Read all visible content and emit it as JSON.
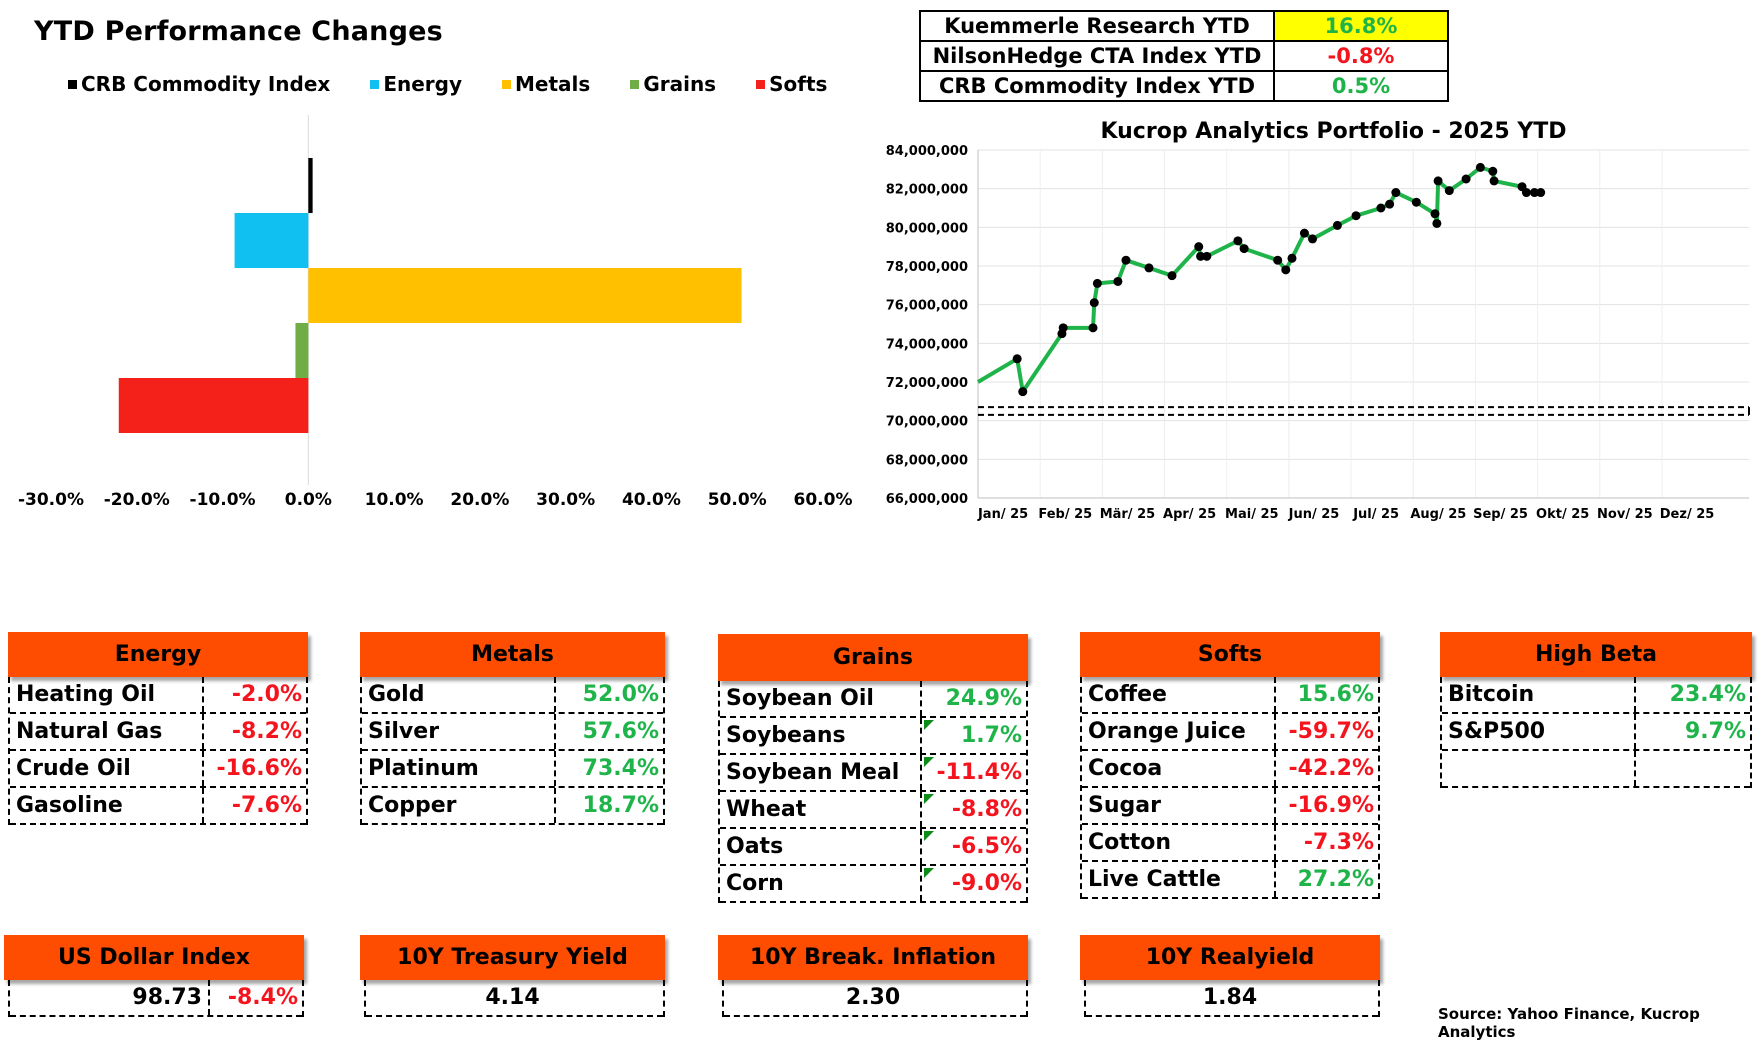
{
  "bar_chart": {
    "title": "YTD Performance Changes",
    "legend": [
      {
        "name": "CRB Commodity Index",
        "color": "#000000"
      },
      {
        "name": "Energy",
        "color": "#0fc0f0"
      },
      {
        "name": "Metals",
        "color": "#ffc000"
      },
      {
        "name": "Grains",
        "color": "#70ad47"
      },
      {
        "name": "Softs",
        "color": "#f4211a"
      }
    ]
  },
  "summary_table": [
    {
      "label": "Kuemmerle Research YTD",
      "value": "16.8%",
      "color": "#1fb44a",
      "bg": "#ffff00"
    },
    {
      "label": "NilsonHedge CTA Index YTD",
      "value": "-0.8%",
      "color": "#f4141e",
      "bg": "#ffffff"
    },
    {
      "label": "CRB Commodity Index YTD",
      "value": "0.5%",
      "color": "#1fb44a",
      "bg": "#ffffff"
    }
  ],
  "chart_data": [
    {
      "type": "bar",
      "orientation": "horizontal",
      "title": "YTD Performance Changes",
      "categories": [
        "CRB Commodity Index",
        "Energy",
        "Metals",
        "Grains",
        "Softs"
      ],
      "values": [
        0.5,
        -8.6,
        50.5,
        -1.5,
        -22.1
      ],
      "colors": [
        "#000000",
        "#0fc0f0",
        "#ffc000",
        "#70ad47",
        "#f4211a"
      ],
      "xlim": [
        -30,
        60
      ],
      "xticks": [
        "-30.0%",
        "-20.0%",
        "-10.0%",
        "0.0%",
        "10.0%",
        "20.0%",
        "30.0%",
        "40.0%",
        "50.0%",
        "60.0%"
      ],
      "legend": "top"
    },
    {
      "type": "line",
      "title": "Kucrop Analytics Portfolio - 2025 YTD",
      "x": [
        "Jan/ 25",
        "Feb/ 25",
        "Mär/ 25",
        "Apr/ 25",
        "Mai/ 25",
        "Jun/ 25",
        "Jul/ 25",
        "Aug/ 25",
        "Sep/ 25",
        "Okt/ 25",
        "Nov/ 25",
        "Dez/ 25"
      ],
      "ylim": [
        66000000,
        84000000
      ],
      "yticks": [
        "66,000,000",
        "68,000,000",
        "70,000,000",
        "72,000,000",
        "74,000,000",
        "76,000,000",
        "78,000,000",
        "80,000,000",
        "82,000,000",
        "84,000,000"
      ],
      "baseline": [
        70300000,
        70700000
      ],
      "grid": true,
      "series_points": [
        [
          0.0,
          72000000
        ],
        [
          0.63,
          73200000
        ],
        [
          0.72,
          71500000
        ],
        [
          1.35,
          74500000
        ],
        [
          1.37,
          74800000
        ],
        [
          1.85,
          74800000
        ],
        [
          1.87,
          76100000
        ],
        [
          1.92,
          77100000
        ],
        [
          2.25,
          77200000
        ],
        [
          2.38,
          78300000
        ],
        [
          2.75,
          77900000
        ],
        [
          3.12,
          77500000
        ],
        [
          3.55,
          79000000
        ],
        [
          3.58,
          78500000
        ],
        [
          3.68,
          78500000
        ],
        [
          4.18,
          79300000
        ],
        [
          4.28,
          78900000
        ],
        [
          4.82,
          78300000
        ],
        [
          4.95,
          77800000
        ],
        [
          5.05,
          78400000
        ],
        [
          5.25,
          79700000
        ],
        [
          5.38,
          79400000
        ],
        [
          5.78,
          80100000
        ],
        [
          6.08,
          80600000
        ],
        [
          6.48,
          81000000
        ],
        [
          6.62,
          81200000
        ],
        [
          6.72,
          81800000
        ],
        [
          7.05,
          81300000
        ],
        [
          7.35,
          80700000
        ],
        [
          7.38,
          80200000
        ],
        [
          7.4,
          82400000
        ],
        [
          7.58,
          81900000
        ],
        [
          7.85,
          82500000
        ],
        [
          8.08,
          83100000
        ],
        [
          8.28,
          82900000
        ],
        [
          8.3,
          82400000
        ],
        [
          8.75,
          82100000
        ],
        [
          8.82,
          81800000
        ],
        [
          8.95,
          81800000
        ],
        [
          9.05,
          81800000
        ]
      ]
    }
  ],
  "categories": [
    {
      "name": "Energy",
      "items": [
        {
          "name": "Heating Oil",
          "value": "-2.0%",
          "sign": "neg"
        },
        {
          "name": "Natural Gas",
          "value": "-8.2%",
          "sign": "neg"
        },
        {
          "name": "Crude Oil",
          "value": "-16.6%",
          "sign": "neg"
        },
        {
          "name": "Gasoline",
          "value": "-7.6%",
          "sign": "neg"
        }
      ]
    },
    {
      "name": "Metals",
      "items": [
        {
          "name": "Gold",
          "value": "52.0%",
          "sign": "pos"
        },
        {
          "name": "Silver",
          "value": "57.6%",
          "sign": "pos"
        },
        {
          "name": "Platinum",
          "value": "73.4%",
          "sign": "pos"
        },
        {
          "name": "Copper",
          "value": "18.7%",
          "sign": "pos"
        }
      ]
    },
    {
      "name": "Grains",
      "items": [
        {
          "name": "Soybean Oil",
          "value": "24.9%",
          "sign": "pos"
        },
        {
          "name": "Soybeans",
          "value": "1.7%",
          "sign": "pos"
        },
        {
          "name": "Soybean Meal",
          "value": "-11.4%",
          "sign": "neg"
        },
        {
          "name": "Wheat",
          "value": "-8.8%",
          "sign": "neg"
        },
        {
          "name": "Oats",
          "value": "-6.5%",
          "sign": "neg"
        },
        {
          "name": "Corn",
          "value": "-9.0%",
          "sign": "neg"
        }
      ]
    },
    {
      "name": "Softs",
      "items": [
        {
          "name": "Coffee",
          "value": "15.6%",
          "sign": "pos"
        },
        {
          "name": "Orange Juice",
          "value": "-59.7%",
          "sign": "neg"
        },
        {
          "name": "Cocoa",
          "value": "-42.2%",
          "sign": "neg"
        },
        {
          "name": "Sugar",
          "value": "-16.9%",
          "sign": "neg"
        },
        {
          "name": "Cotton",
          "value": "-7.3%",
          "sign": "neg"
        },
        {
          "name": "Live Cattle",
          "value": "27.2%",
          "sign": "pos"
        }
      ]
    },
    {
      "name": "High Beta",
      "items": [
        {
          "name": "Bitcoin",
          "value": "23.4%",
          "sign": "pos"
        },
        {
          "name": "S&P500",
          "value": "9.7%",
          "sign": "pos"
        },
        {
          "name": "",
          "value": "",
          "sign": "pos"
        }
      ]
    }
  ],
  "indicators": [
    {
      "name": "US Dollar Index",
      "value": "98.73",
      "change": "-8.4%"
    },
    {
      "name": "10Y Treasury Yield",
      "value": "4.14"
    },
    {
      "name": "10Y Break. Inflation",
      "value": "2.30"
    },
    {
      "name": "10Y Realyield",
      "value": "1.84"
    }
  ],
  "source": "Source: Yahoo Finance, Kucrop Analytics"
}
